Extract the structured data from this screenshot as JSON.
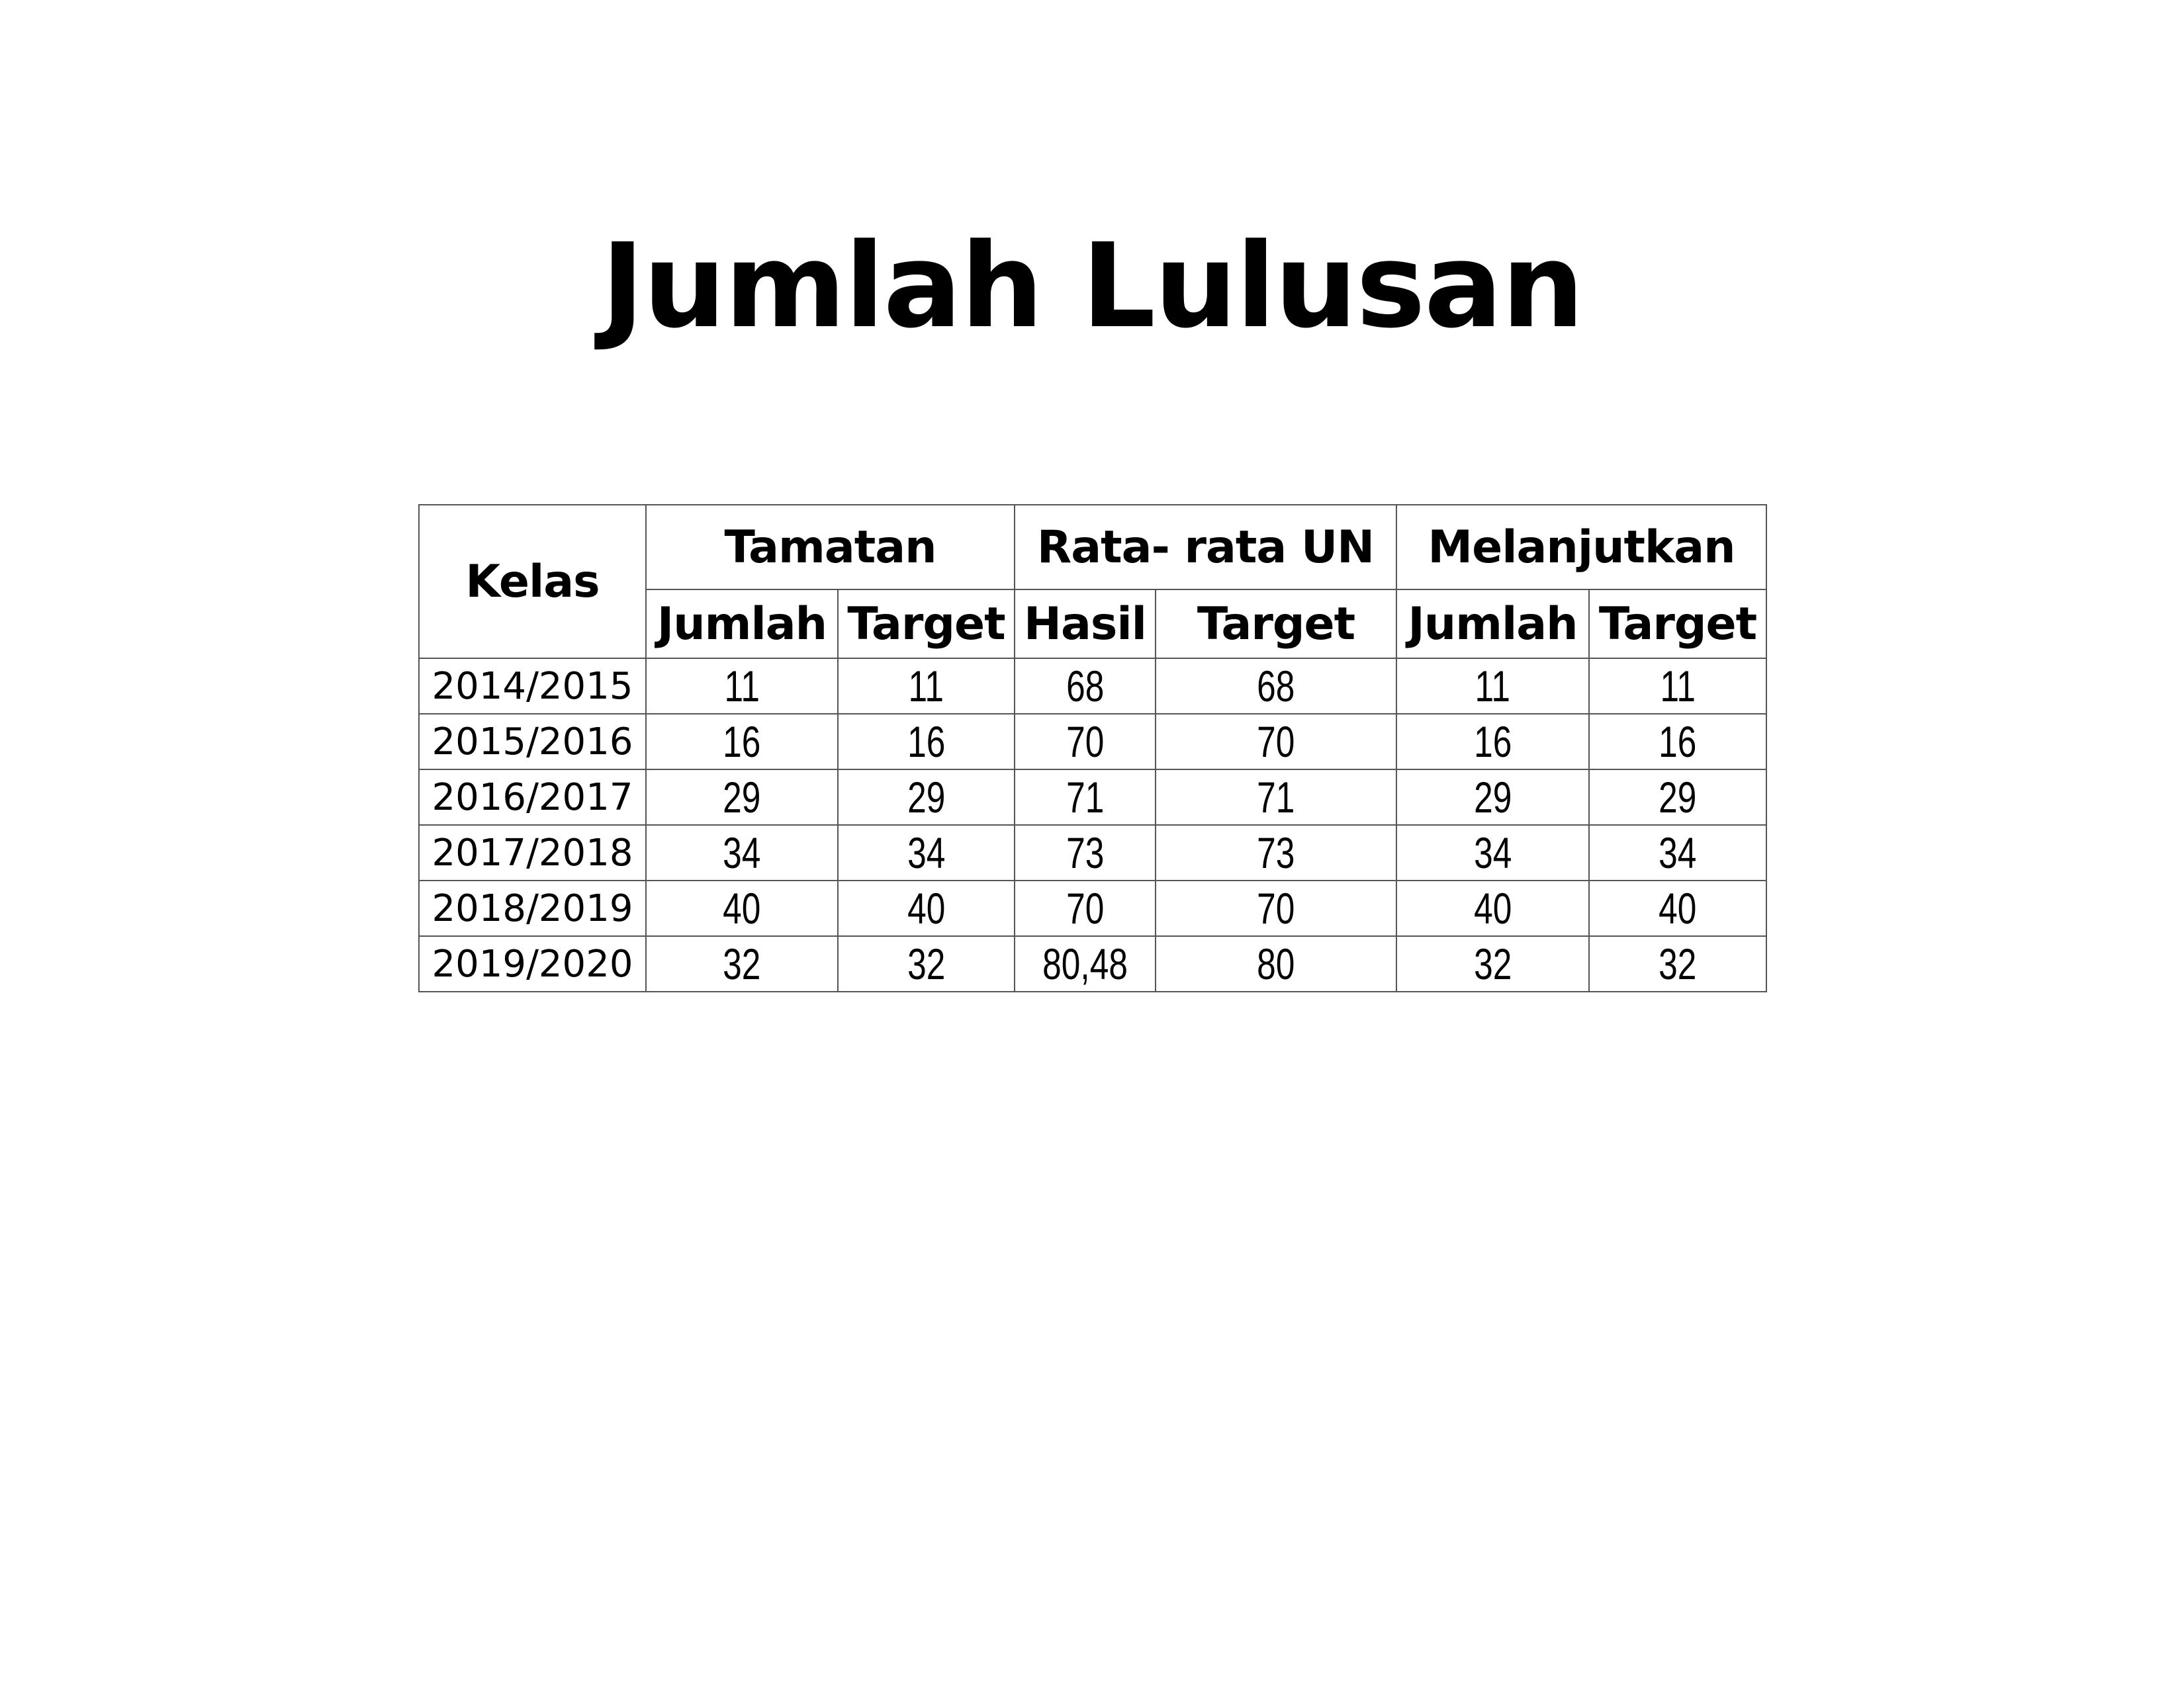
{
  "title": "Jumlah Lulusan",
  "table": {
    "headers": {
      "kelas": "Kelas",
      "groups": [
        "Tamatan",
        "Rata- rata UN",
        "Melanjutkan"
      ],
      "sub": [
        "Jumlah",
        "Target",
        "Hasil",
        "Target",
        "Jumlah",
        "Target"
      ]
    },
    "rows": [
      [
        "2014/2015",
        "11",
        "11",
        "68",
        "68",
        "11",
        "11"
      ],
      [
        "2015/2016",
        "16",
        "16",
        "70",
        "70",
        "16",
        "16"
      ],
      [
        "2016/2017",
        "29",
        "29",
        "71",
        "71",
        "29",
        "29"
      ],
      [
        "2017/2018",
        "34",
        "34",
        "73",
        "73",
        "34",
        "34"
      ],
      [
        "2018/2019",
        "40",
        "40",
        "70",
        "70",
        "40",
        "40"
      ],
      [
        "2019/2020",
        "32",
        "32",
        "80,48",
        "80",
        "32",
        "32"
      ]
    ]
  }
}
